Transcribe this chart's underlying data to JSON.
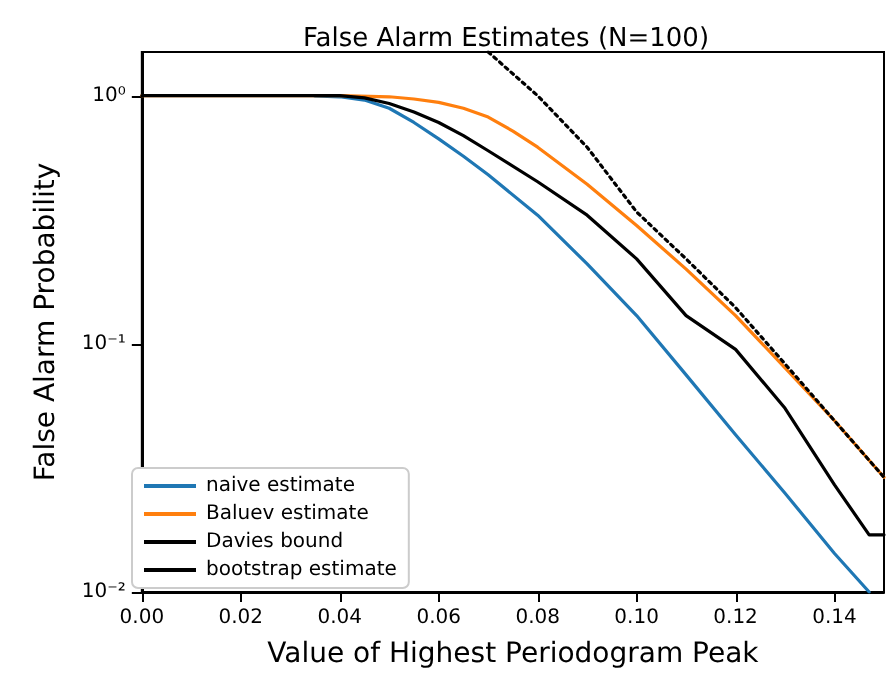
{
  "chart_data": {
    "type": "line",
    "title": "False Alarm Estimates (N=100)",
    "xlabel": "Value of Highest Periodogram Peak",
    "ylabel": "False Alarm Probability",
    "log": "y",
    "xlim": [
      0,
      0.15
    ],
    "ylim": [
      0.01,
      1.5
    ],
    "xticks": [
      {
        "value": 0,
        "label": "0.00"
      },
      {
        "value": 0.02,
        "label": "0.02"
      },
      {
        "value": 0.04,
        "label": "0.04"
      },
      {
        "value": 0.06,
        "label": "0.06"
      },
      {
        "value": 0.08,
        "label": "0.08"
      },
      {
        "value": 0.1,
        "label": "0.10"
      },
      {
        "value": 0.12,
        "label": "0.12"
      },
      {
        "value": 0.14,
        "label": "0.14"
      }
    ],
    "yticks": [
      {
        "value": 0.01,
        "label": "10⁻²"
      },
      {
        "value": 0.1,
        "label": "10⁻¹"
      },
      {
        "value": 1,
        "label": "10⁰"
      }
    ],
    "legend": "bottom left",
    "grid": false,
    "marker": "none",
    "series": [
      {
        "name": "naive estimate",
        "color": "#1f77b4",
        "line_style": "solid",
        "x": [
          0.035,
          0.04,
          0.045,
          0.05,
          0.055,
          0.06,
          0.065,
          0.07,
          0.08,
          0.09,
          0.1,
          0.11,
          0.12,
          0.13,
          0.14,
          0.147
        ],
        "values": [
          0.998,
          0.99,
          0.96,
          0.89,
          0.78,
          0.67,
          0.57,
          0.48,
          0.33,
          0.21,
          0.13,
          0.075,
          0.043,
          0.025,
          0.0143,
          0.01
        ]
      },
      {
        "name": "Baluev estimate",
        "color": "#ff7f0e",
        "line_style": "solid",
        "x": [
          0,
          0.04,
          0.05,
          0.055,
          0.06,
          0.065,
          0.07,
          0.075,
          0.08,
          0.09,
          0.1,
          0.11,
          0.12,
          0.13,
          0.14,
          0.15
        ],
        "values": [
          1,
          1,
          0.99,
          0.97,
          0.94,
          0.89,
          0.82,
          0.72,
          0.62,
          0.44,
          0.3,
          0.2,
          0.13,
          0.08,
          0.049,
          0.029
        ]
      },
      {
        "name": "Davies bound",
        "color": "#000000",
        "line_style": "dotted",
        "x": [
          0.07,
          0.08,
          0.09,
          0.1,
          0.11,
          0.12,
          0.13,
          0.14,
          0.15
        ],
        "values": [
          1.5,
          1.0,
          0.62,
          0.34,
          0.22,
          0.14,
          0.083,
          0.049,
          0.029
        ]
      },
      {
        "name": "bootstrap estimate",
        "color": "#000000",
        "line_style": "solid",
        "x": [
          0,
          0.04,
          0.045,
          0.05,
          0.055,
          0.06,
          0.065,
          0.07,
          0.08,
          0.09,
          0.1,
          0.11,
          0.12,
          0.13,
          0.14,
          0.147,
          0.15
        ],
        "values": [
          1,
          1,
          0.98,
          0.93,
          0.86,
          0.78,
          0.69,
          0.6,
          0.45,
          0.33,
          0.22,
          0.13,
          0.095,
          0.055,
          0.027,
          0.017,
          0.017
        ]
      }
    ]
  }
}
